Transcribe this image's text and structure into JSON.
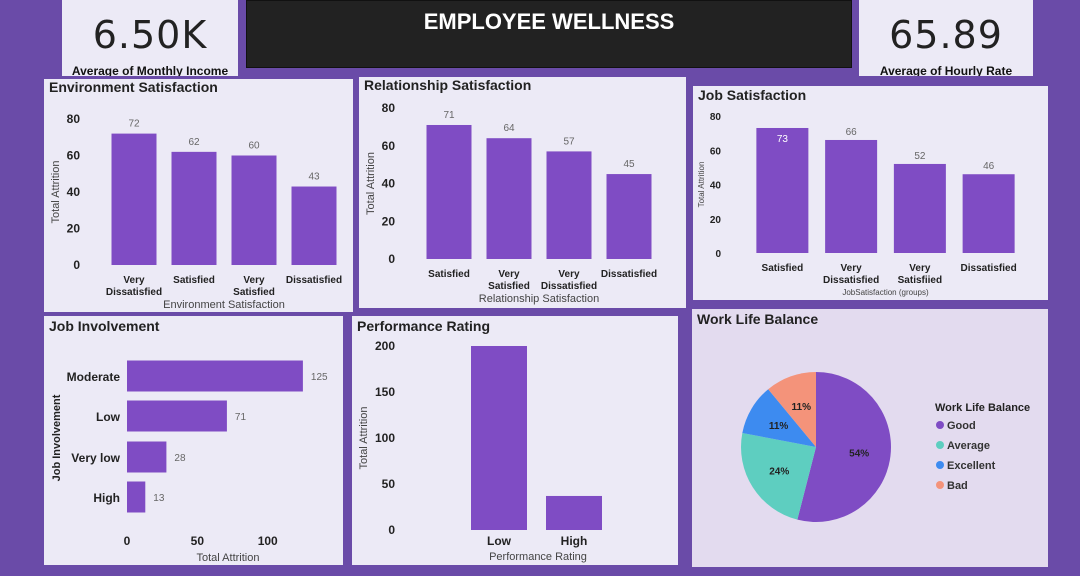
{
  "header": {
    "title": "EMPLOYEE WELLNESS",
    "kpi_left": {
      "value": "6.50K",
      "label": "Average of Monthly Income"
    },
    "kpi_right": {
      "value": "65.89",
      "label": "Average of Hourly Rate"
    }
  },
  "colors": {
    "bar": "#7f4cc4",
    "background": "#6a4ba8",
    "panel": "#eceaf6"
  },
  "chart_data": [
    {
      "id": "env",
      "type": "bar",
      "title": "Environment Satisfaction",
      "categories": [
        "Very Dissatisfied",
        "Satisfied",
        "Very Satisfied",
        "Dissatisfied"
      ],
      "values": [
        72,
        62,
        60,
        43
      ],
      "xlabel": "Environment Satisfaction",
      "ylabel": "Total Attrition",
      "ylim": [
        0,
        80
      ],
      "yticks": [
        0,
        20,
        40,
        60,
        80
      ]
    },
    {
      "id": "rel",
      "type": "bar",
      "title": "Relationship Satisfaction",
      "categories": [
        "Satisfied",
        "Very Satisfied",
        "Very Dissatisfied",
        "Dissatisfied"
      ],
      "values": [
        71,
        64,
        57,
        45
      ],
      "xlabel": "Relationship Satisfaction",
      "ylabel": "Total Attrition",
      "ylim": [
        0,
        80
      ],
      "yticks": [
        0,
        20,
        40,
        60,
        80
      ]
    },
    {
      "id": "job",
      "type": "bar",
      "title": "Job Satisfaction",
      "categories": [
        "Satisfied",
        "Very Dissatisfied",
        "Very Satisfiied",
        "Dissatisfied"
      ],
      "values": [
        73,
        66,
        52,
        46
      ],
      "xlabel": "JobSatisfaction (groups)",
      "ylabel": "Total Attrition",
      "ylim": [
        0,
        80
      ],
      "yticks": [
        0,
        20,
        40,
        60,
        80
      ]
    },
    {
      "id": "inv",
      "type": "bar",
      "orientation": "horizontal",
      "title": "Job Involvement",
      "categories": [
        "Moderate",
        "Low",
        "Very low",
        "High"
      ],
      "values": [
        125,
        71,
        28,
        13
      ],
      "xlabel": "Total Attrition",
      "ylabel": "Job Involvement",
      "xlim": [
        0,
        140
      ],
      "xticks": [
        0,
        50,
        100
      ]
    },
    {
      "id": "perf",
      "type": "bar",
      "title": "Performance Rating",
      "categories": [
        "Low",
        "High"
      ],
      "values": [
        200,
        37
      ],
      "xlabel": "Performance Rating",
      "ylabel": "Total Attrition",
      "ylim": [
        0,
        200
      ],
      "yticks": [
        0,
        50,
        100,
        150,
        200
      ]
    },
    {
      "id": "wlb",
      "type": "pie",
      "title": "Work Life Balance",
      "legend_title": "Work Life Balance",
      "legend_position": "right",
      "categories": [
        "Good",
        "Average",
        "Excellent",
        "Bad"
      ],
      "values": [
        54,
        24,
        11,
        11
      ],
      "labels": [
        "54%",
        "24%",
        "11%",
        "11%"
      ],
      "colors": [
        "#7f4cc4",
        "#5ecec0",
        "#3d8bf0",
        "#f4937a"
      ]
    }
  ]
}
